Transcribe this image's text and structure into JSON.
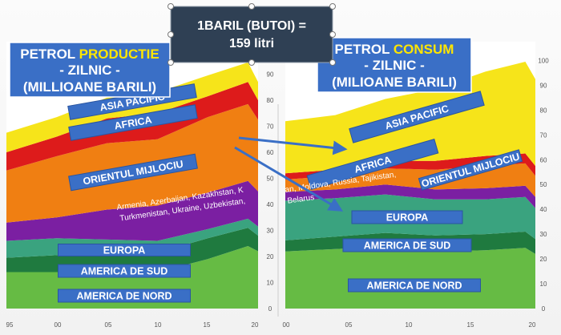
{
  "callout": {
    "line1": "1BARIL (BUTOI) =",
    "line2": "159 litri"
  },
  "colors": {
    "north_america": "#66bb44",
    "south_america": "#1f7a3f",
    "europe": "#3aa37f",
    "cis": "#7b1fa2",
    "middle_east": "#f07f12",
    "africa": "#dd1b1b",
    "asia_pacific": "#f6e41a",
    "label_box": "#3a6fc6",
    "title_box": "#3a6fc6",
    "highlight": "#ffe600"
  },
  "chart_data": [
    {
      "type": "area",
      "title_parts": [
        "PETROL ",
        "PRODUCTIE",
        "- ZILNIC -",
        "(MILLIOANE BARILI)"
      ],
      "x": [
        1995,
        2000,
        2005,
        2010,
        2015,
        2019,
        2020
      ],
      "x_ticks": [
        "95",
        "00",
        "05",
        "10",
        "15",
        "20"
      ],
      "y_ticks": [
        "0",
        "10",
        "20",
        "30",
        "40",
        "50",
        "60",
        "70",
        "80",
        "90"
      ],
      "ylim": [
        0,
        100
      ],
      "series": [
        {
          "name": "AMERICA DE NORD",
          "values": [
            14,
            14,
            14,
            14,
            19,
            24,
            22
          ]
        },
        {
          "name": "AMERICA DE SUD",
          "values": [
            5.5,
            6.5,
            7,
            7.5,
            8,
            7,
            6
          ]
        },
        {
          "name": "EUROPA",
          "values": [
            6.5,
            6.5,
            5.5,
            4.5,
            3.5,
            3.5,
            3.5
          ]
        },
        {
          "name": "Armenia, Azerbaijan, Kazakhstan, Kyrgyzstan, Moldova, Russia, Tajikistan, Turkmenistan, Ukraine, Uzbekistan, Belarus",
          "values": [
            7,
            8,
            11.5,
            13.5,
            14,
            14.5,
            13.5
          ]
        },
        {
          "name": "ORIENTUL MIJLOCIU",
          "values": [
            20,
            23.5,
            25.5,
            25.5,
            29,
            29.5,
            27.5
          ]
        },
        {
          "name": "AFRICA",
          "values": [
            7,
            7.5,
            9.5,
            10,
            8,
            8.5,
            7.5
          ]
        },
        {
          "name": "ASIA PACIFIC",
          "values": [
            7.5,
            7.5,
            8,
            8,
            8,
            7.5,
            7
          ]
        }
      ],
      "labels": {
        "asia_pacific": "ASIA PACIFIC",
        "africa": "AFRICA",
        "middle_east": "ORIENTUL MIJLOCIU",
        "cis_line1": "Armenia, Azerbaijan, Kazakhstan, K",
        "cis_line2": "Turkmenistan, Ukraine, Uzbekistan,",
        "europe": "EUROPA",
        "south_america": "AMERICA DE SUD",
        "north_america": "AMERICA DE NORD"
      }
    },
    {
      "type": "area",
      "title_parts": [
        "PETROL ",
        "CONSUM",
        "- ZILNIC -",
        "(MILIOANE BARILI)"
      ],
      "x": [
        1995,
        2000,
        2005,
        2010,
        2015,
        2019,
        2020
      ],
      "x_ticks": [
        "00",
        "05",
        "10",
        "15",
        "20"
      ],
      "y_ticks": [
        "0",
        "10",
        "20",
        "30",
        "40",
        "50",
        "60",
        "70",
        "80",
        "90",
        "100"
      ],
      "ylim": [
        0,
        105
      ],
      "series": [
        {
          "name": "AMERICA DE NORD",
          "values": [
            23,
            24,
            25,
            23,
            23.5,
            24.5,
            22
          ]
        },
        {
          "name": "AMERICA DE SUD",
          "values": [
            4.5,
            5,
            5.5,
            6.5,
            6.5,
            6.5,
            6
          ]
        },
        {
          "name": "EUROPA",
          "values": [
            16,
            15.5,
            15.5,
            14.5,
            14,
            14,
            12.5
          ]
        },
        {
          "name": "Armenia, Azerbaijan, Kazakhstan, Kyrgyzstan, Moldova, Russia, Tajikistan, Turkmenistan, Ukraine, Uzbekistan, Belarus",
          "values": [
            3.5,
            3.5,
            4,
            4,
            4.5,
            4.5,
            4.5
          ]
        },
        {
          "name": "ORIENTUL MIJLOCIU",
          "values": [
            5,
            5.5,
            6.5,
            8,
            9,
            9,
            8.5
          ]
        },
        {
          "name": "AFRICA",
          "values": [
            2.5,
            2.5,
            3,
            3.5,
            4,
            4,
            4
          ]
        },
        {
          "name": "ASIA PACIFIC",
          "values": [
            21,
            22,
            25,
            29,
            34,
            37,
            35
          ]
        }
      ],
      "labels": {
        "asia_pacific": "ASIA PACIFIC",
        "africa": "AFRICA",
        "middle_east": "ORIENTUL MIJLOCIU",
        "cis_line1": "an, Moldova, Russia, Tajikistan,",
        "cis_line2": "Belarus",
        "europe": "EUROPA",
        "south_america": "AMERICA DE SUD",
        "north_america": "AMERICA DE NORD"
      }
    }
  ]
}
